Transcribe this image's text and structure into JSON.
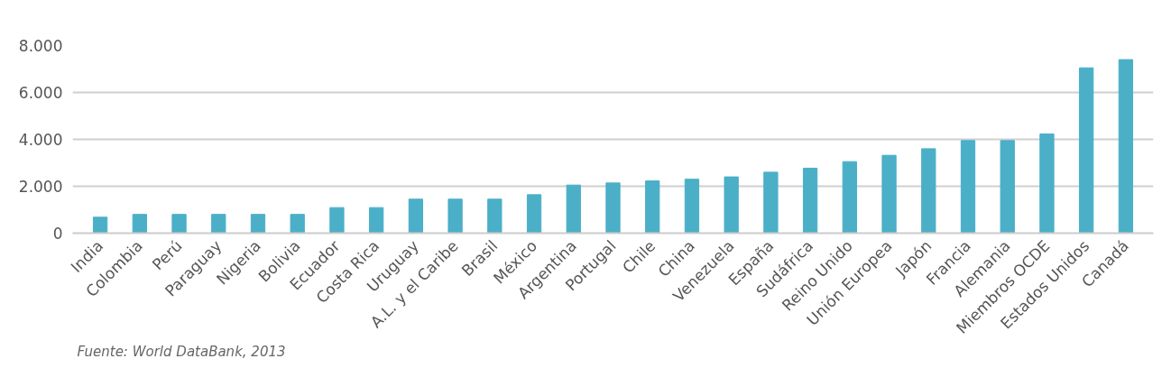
{
  "chart_data": {
    "type": "bar",
    "categories": [
      "India",
      "Colombia",
      "Perú",
      "Paraguay",
      "Nigeria",
      "Bolivia",
      "Ecuador",
      "Costa Rica",
      "Uruguay",
      "A.L. y el Caribe",
      "Brasil",
      "México",
      "Argentina",
      "Portugal",
      "Chile",
      "China",
      "Venezuela",
      "España",
      "Sudáfrica",
      "Reino Unido",
      "Unión Europea",
      "Japón",
      "Francia",
      "Alemania",
      "Miembros OCDE",
      "Estados Unidos",
      "Canadá"
    ],
    "values": [
      680,
      800,
      800,
      800,
      800,
      800,
      1090,
      1090,
      1450,
      1450,
      1450,
      1640,
      2050,
      2140,
      2230,
      2300,
      2400,
      2600,
      2770,
      3050,
      3320,
      3600,
      3950,
      3950,
      4230,
      7050,
      7400
    ],
    "color": "#4bafc8",
    "ylim": [
      0,
      8000
    ],
    "yticks": [
      0,
      {
        "value": 2000,
        "label": "2.000"
      },
      {
        "value": 4000,
        "label": "4.000"
      },
      {
        "value": 6000,
        "label": "6.000"
      },
      {
        "value": 8000,
        "label": "8.000"
      }
    ],
    "grid": "y",
    "annotations": [
      "Fuente: World DataBank, 2013"
    ]
  }
}
